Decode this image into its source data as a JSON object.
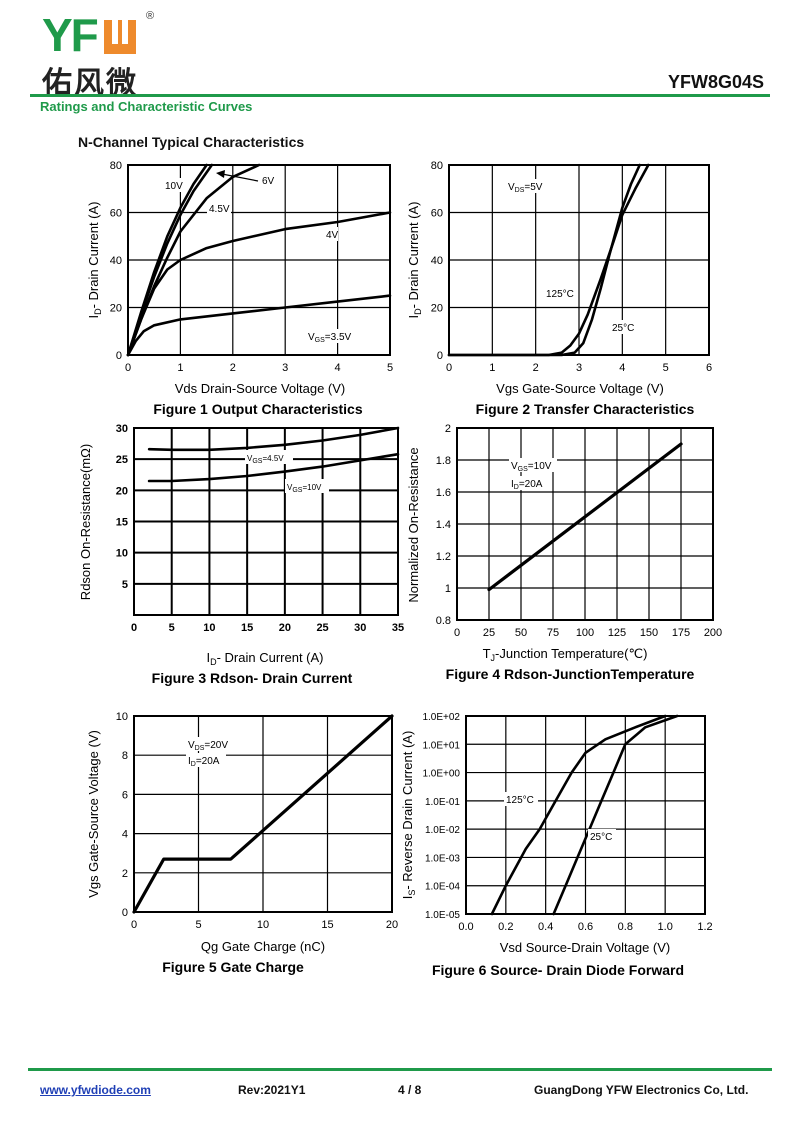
{
  "header": {
    "logo_text": "YF",
    "logo_mark": "U",
    "logo_registered": "®",
    "logo_chinese": "佑风微",
    "part_number": "YFW8G04S",
    "section_title": "Ratings and Characteristic Curves",
    "subtitle": "N-Channel Typical Characteristics"
  },
  "footer": {
    "website": "www.yfwdiode.com",
    "revision": "Rev:2021Y1",
    "page": "4 / 8",
    "company": "GuangDong YFW Electronics Co, Ltd."
  },
  "colors": {
    "brand_green": "#1f9a4a",
    "brand_orange": "#ee8a2c",
    "line": "#000000"
  },
  "chart_data": [
    {
      "id": "fig1",
      "type": "line",
      "title": "Figure 1 Output Characteristics",
      "xlabel": "Vds Drain-Source Voltage (V)",
      "ylabel": "I₂- Drain Current (A)",
      "ylabel_main": "I",
      "ylabel_sub": "D",
      "ylabel_rest": "- Drain Current (A)",
      "xlim": [
        0,
        5
      ],
      "ylim": [
        0,
        80
      ],
      "xticks": [
        0,
        1,
        2,
        3,
        4,
        5
      ],
      "yticks": [
        0,
        20,
        40,
        60,
        80
      ],
      "xtick_labels": [
        "0",
        "1",
        "2",
        "3",
        "4",
        "5"
      ],
      "ytick_labels": [
        "0",
        "20",
        "40",
        "60",
        "80"
      ],
      "grid": true,
      "yscale": "linear",
      "series": [
        {
          "name": "10V",
          "x": [
            0,
            0.25,
            0.5,
            0.75,
            1.0,
            1.25,
            1.5
          ],
          "y": [
            0,
            18,
            35,
            50,
            62,
            72,
            80
          ]
        },
        {
          "name": "6V",
          "x": [
            0,
            0.25,
            0.5,
            0.75,
            1.0,
            1.25,
            1.6
          ],
          "y": [
            0,
            17,
            33,
            47,
            59,
            69,
            80
          ]
        },
        {
          "name": "4.5V",
          "x": [
            0,
            0.25,
            0.5,
            0.75,
            1.0,
            1.5,
            2.0,
            2.5
          ],
          "y": [
            0,
            15,
            29,
            41,
            52,
            66,
            75,
            80
          ]
        },
        {
          "name": "4V",
          "x": [
            0,
            0.25,
            0.5,
            0.75,
            1.0,
            1.5,
            2.0,
            3.0,
            4.0,
            5.0
          ],
          "y": [
            0,
            15,
            28,
            36,
            40,
            45,
            48,
            53,
            56,
            60
          ]
        },
        {
          "name": "VGS=3.5V",
          "x": [
            0,
            0.15,
            0.3,
            0.5,
            1.0,
            2.0,
            3.0,
            4.0,
            5.0
          ],
          "y": [
            0,
            6,
            10,
            12.5,
            15,
            17.5,
            20,
            22.5,
            25
          ]
        }
      ],
      "annotations": [
        "10V",
        "6V",
        "4.5V",
        "4V",
        "VGS=3.5V"
      ]
    },
    {
      "id": "fig2",
      "type": "line",
      "title": "Figure 2 Transfer Characteristics",
      "xlabel": "Vgs Gate-Source Voltage (V)",
      "ylabel_main": "I",
      "ylabel_sub": "D",
      "ylabel_rest": "- Drain Current (A)",
      "xlim": [
        0,
        6
      ],
      "ylim": [
        0,
        80
      ],
      "xticks": [
        0,
        1,
        2,
        3,
        4,
        5,
        6
      ],
      "yticks": [
        0,
        20,
        40,
        60,
        80
      ],
      "xtick_labels": [
        "0",
        "1",
        "2",
        "3",
        "4",
        "5",
        "6"
      ],
      "ytick_labels": [
        "0",
        "20",
        "40",
        "60",
        "80"
      ],
      "grid": true,
      "yscale": "linear",
      "series": [
        {
          "name": "125°C",
          "x": [
            0,
            2.3,
            2.6,
            2.8,
            3.0,
            3.2,
            3.5,
            3.8,
            4.0,
            4.3,
            4.6
          ],
          "y": [
            0,
            0,
            1,
            4,
            9,
            17,
            32,
            48,
            59,
            70,
            80
          ]
        },
        {
          "name": "25°C",
          "x": [
            0,
            2.6,
            2.9,
            3.1,
            3.3,
            3.5,
            3.7,
            4.0,
            4.2,
            4.4
          ],
          "y": [
            0,
            0,
            1,
            5,
            15,
            28,
            42,
            62,
            72,
            80
          ]
        }
      ],
      "annotations": [
        "VDS=5V",
        "125°C",
        "25°C"
      ]
    },
    {
      "id": "fig3",
      "type": "line",
      "title": "Figure 3 Rdson- Drain Current",
      "xlabel_main": "I",
      "xlabel_sub": "D",
      "xlabel_rest": "- Drain Current (A)",
      "ylabel": "Rdson On-Resistance(mΩ)",
      "xlim": [
        0,
        35
      ],
      "ylim": [
        0,
        30
      ],
      "xticks": [
        0,
        5,
        10,
        15,
        20,
        25,
        30,
        35
      ],
      "yticks": [
        5,
        10,
        15,
        20,
        25,
        30
      ],
      "xtick_labels": [
        "0",
        "5",
        "10",
        "15",
        "20",
        "25",
        "30",
        "35"
      ],
      "ytick_labels": [
        "5",
        "10",
        "15",
        "20",
        "25",
        "30"
      ],
      "grid": true,
      "yscale": "linear",
      "series": [
        {
          "name": "VGS=4.5V",
          "x": [
            2,
            5,
            10,
            15,
            20,
            25,
            30,
            35
          ],
          "y": [
            26.6,
            26.5,
            26.5,
            26.8,
            27.3,
            28.0,
            28.9,
            30.0
          ]
        },
        {
          "name": "VGS=10V",
          "x": [
            2,
            5,
            10,
            15,
            20,
            25,
            30,
            35
          ],
          "y": [
            21.5,
            21.5,
            21.8,
            22.3,
            23.0,
            23.8,
            24.8,
            25.8
          ]
        }
      ],
      "annotations": [
        "VGS=4.5V",
        "VGS=10V"
      ]
    },
    {
      "id": "fig4",
      "type": "line",
      "title": "Figure 4 Rdson-JunctionTemperature",
      "xlabel_main": "T",
      "xlabel_sub": "J",
      "xlabel_rest": "-Junction Temperature(℃)",
      "ylabel": "Normalized On-Resistance",
      "xlim": [
        0,
        200
      ],
      "ylim": [
        0.8,
        2.0
      ],
      "xticks": [
        0,
        25,
        50,
        75,
        100,
        125,
        150,
        175,
        200
      ],
      "yticks": [
        0.8,
        1.0,
        1.2,
        1.4,
        1.6,
        1.8,
        2.0
      ],
      "xtick_labels": [
        "0",
        "25",
        "50",
        "75",
        "100",
        "125",
        "150",
        "175",
        "200"
      ],
      "ytick_labels": [
        "0.8",
        "1",
        "1.2",
        "1.4",
        "1.6",
        "1.8",
        "2"
      ],
      "grid": true,
      "yscale": "linear",
      "series": [
        {
          "name": "VGS=10V, ID=20A",
          "x": [
            25,
            175
          ],
          "y": [
            0.99,
            1.9
          ]
        }
      ],
      "annotations": [
        "VGS=10V",
        "ID=20A"
      ]
    },
    {
      "id": "fig5",
      "type": "line",
      "title": "Figure 5 Gate Charge",
      "xlabel": "Qg Gate Charge (nC)",
      "ylabel": "Vgs Gate-Source Voltage (V)",
      "xlim": [
        0,
        20
      ],
      "ylim": [
        0,
        10
      ],
      "xticks": [
        0,
        5,
        10,
        15,
        20
      ],
      "yticks": [
        0,
        2,
        4,
        6,
        8,
        10
      ],
      "xtick_labels": [
        "0",
        "5",
        "10",
        "15",
        "20"
      ],
      "ytick_labels": [
        "0",
        "2",
        "4",
        "6",
        "8",
        "10"
      ],
      "grid": true,
      "yscale": "linear",
      "series": [
        {
          "name": "VDS=20V, ID=20A",
          "x": [
            0,
            2.3,
            7.5,
            20
          ],
          "y": [
            0,
            2.7,
            2.7,
            10
          ]
        }
      ],
      "annotations": [
        "VDS=20V",
        "ID=20A"
      ]
    },
    {
      "id": "fig6",
      "type": "line",
      "title": "Figure 6 Source- Drain Diode Forward",
      "xlabel": "Vsd Source-Drain Voltage (V)",
      "ylabel_main": "I",
      "ylabel_sub": "S",
      "ylabel_rest": "- Reverse Drain Current (A)",
      "xlim": [
        0,
        1.2
      ],
      "ylim": [
        1e-05,
        100.0
      ],
      "xticks": [
        0,
        0.2,
        0.4,
        0.6,
        0.8,
        1.0,
        1.2
      ],
      "yticks": [
        1e-05,
        0.0001,
        0.001,
        0.01,
        0.1,
        1.0,
        10.0,
        100.0
      ],
      "xtick_labels": [
        "0.0",
        "0.2",
        "0.4",
        "0.6",
        "0.8",
        "1.0",
        "1.2"
      ],
      "ytick_labels": [
        "1.0E-05",
        "1.0E-04",
        "1.0E-03",
        "1.0E-02",
        "1.0E-01",
        "1.0E+00",
        "1.0E+01",
        "1.0E+02"
      ],
      "grid": true,
      "yscale": "log",
      "series": [
        {
          "name": "125°C",
          "x": [
            0.13,
            0.2,
            0.3,
            0.37,
            0.45,
            0.53,
            0.6,
            0.7,
            0.85,
            1.0
          ],
          "y": [
            1e-05,
            0.0001,
            0.002,
            0.01,
            0.1,
            1.0,
            5.0,
            15.0,
            40.0,
            100.0
          ]
        },
        {
          "name": "25°C",
          "x": [
            0.44,
            0.5,
            0.56,
            0.62,
            0.68,
            0.74,
            0.8,
            0.9,
            1.06
          ],
          "y": [
            1e-05,
            0.0001,
            0.001,
            0.01,
            0.1,
            1.0,
            10.0,
            40.0,
            100.0
          ]
        }
      ],
      "annotations": [
        "125°C",
        "25°C"
      ]
    }
  ]
}
